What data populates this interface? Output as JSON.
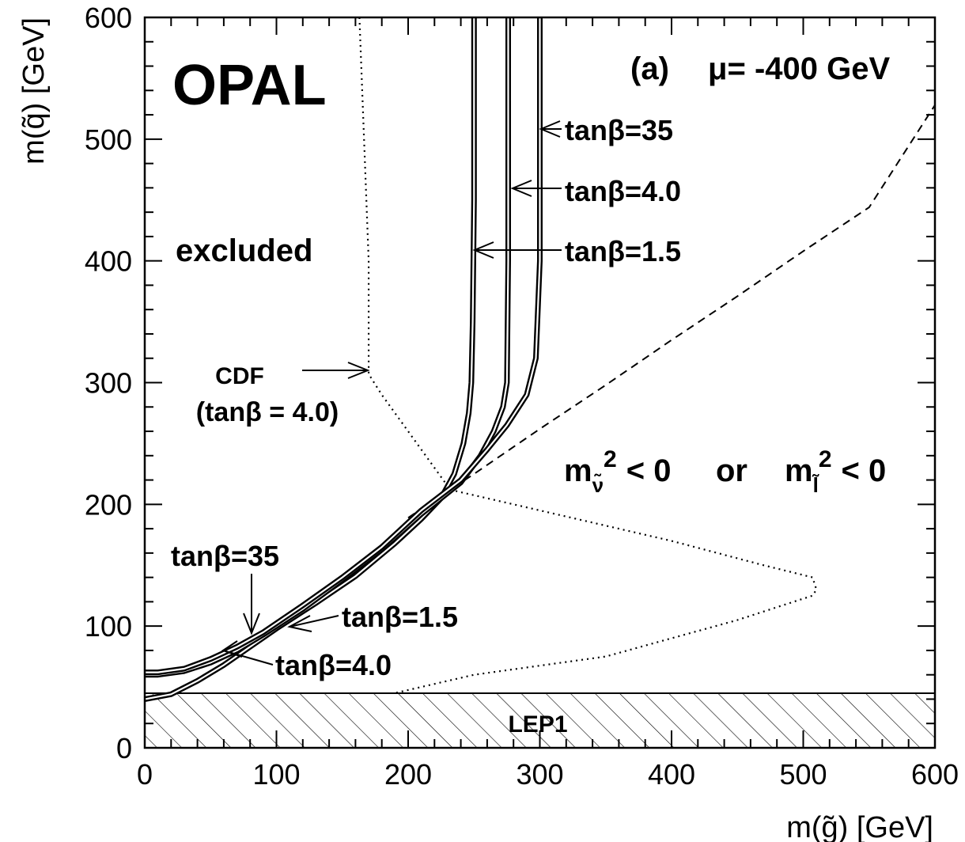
{
  "chart_data": {
    "type": "line",
    "experiment_label": "OPAL",
    "panel_label": "(a)",
    "parameter_label": "μ= -400 GeV",
    "xlabel": "m(g̃) [GeV]",
    "ylabel": "m(q̃) [GeV]",
    "xlim": [
      0,
      600
    ],
    "ylim": [
      0,
      600
    ],
    "xticks": [
      0,
      100,
      200,
      300,
      400,
      500,
      600
    ],
    "yticks": [
      0,
      100,
      200,
      300,
      400,
      500,
      600
    ],
    "grid": false,
    "excluded_label": "excluded",
    "forbidden_region_label": {
      "m": "m",
      "sub1": "ν̃",
      "sup": "2",
      "lt": "< 0",
      "or": "or",
      "sub2": "l̃"
    },
    "lep1_label": "LEP1",
    "lep1_limit": 45,
    "cdf_label_line1": "CDF",
    "cdf_label_line2": "(tanβ = 4.0)",
    "cdf_boundary": {
      "x": [
        163,
        170,
        170,
        180,
        200,
        220,
        232,
        300,
        400,
        470,
        507,
        510,
        507,
        450,
        350,
        250,
        190
      ],
      "y": [
        600,
        400,
        307,
        290,
        260,
        230,
        212,
        195,
        170,
        150,
        140,
        130,
        125,
        105,
        75,
        60,
        45
      ]
    },
    "dashed_boundary": {
      "x": [
        200,
        250,
        300,
        350,
        400,
        450,
        500,
        550,
        600
      ],
      "y": [
        189,
        225,
        262,
        298,
        335,
        371,
        408,
        444,
        528
      ]
    },
    "series": [
      {
        "name": "tanβ=1.5",
        "x": [
          0,
          20,
          40,
          60,
          80,
          100,
          130,
          160,
          190,
          210,
          225,
          235,
          242,
          246,
          248,
          249,
          250,
          250
        ],
        "y": [
          40,
          44,
          55,
          68,
          83,
          98,
          119,
          141,
          168,
          188,
          205,
          225,
          250,
          275,
          300,
          350,
          450,
          600
        ]
      },
      {
        "name": "tanβ=4.0",
        "x": [
          0,
          10,
          30,
          50,
          70,
          90,
          120,
          150,
          180,
          210,
          240,
          255,
          265,
          272,
          275,
          276,
          276
        ],
        "y": [
          60,
          60,
          63,
          70,
          80,
          93,
          114,
          138,
          163,
          192,
          218,
          240,
          260,
          280,
          300,
          400,
          600
        ]
      },
      {
        "name": "tanβ=35",
        "x": [
          0,
          10,
          30,
          50,
          70,
          90,
          120,
          150,
          180,
          210,
          240,
          260,
          275,
          290,
          297,
          300,
          300
        ],
        "y": [
          62,
          62,
          65,
          73,
          83,
          95,
          117,
          140,
          165,
          195,
          220,
          245,
          265,
          290,
          320,
          400,
          600
        ]
      }
    ],
    "annotations": {
      "upper_tb35": "tanβ=35",
      "upper_tb40": "tanβ=4.0",
      "upper_tb15": "tanβ=1.5",
      "lower_tb35": "tanβ=35",
      "lower_tb15": "tanβ=1.5",
      "lower_tb40": "tanβ=4.0"
    }
  }
}
